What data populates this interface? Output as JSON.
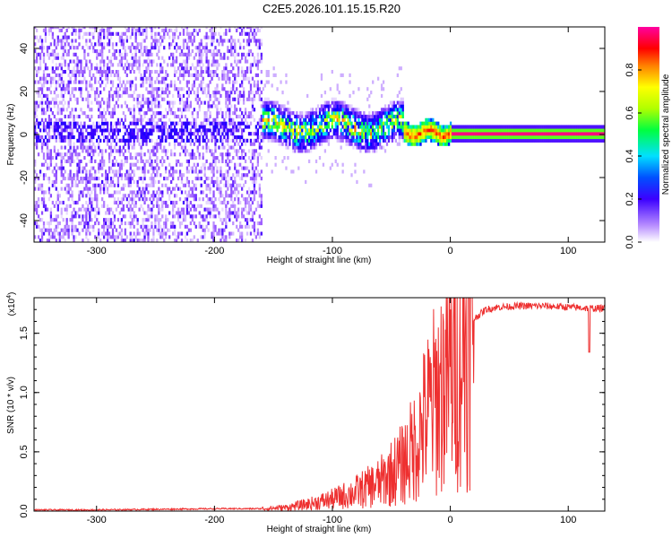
{
  "title": "C2E5.2026.101.15.15.R20",
  "chart_data": [
    {
      "type": "heatmap",
      "title": "C2E5.2026.101.15.15.R20",
      "xlabel": "Height of straight line (km)",
      "ylabel": "Frequency (Hz)",
      "xlim": [
        -353,
        131
      ],
      "ylim": [
        -50,
        50
      ],
      "xticks": [
        -300,
        -200,
        -100,
        0,
        100
      ],
      "yticks": [
        -40,
        -20,
        0,
        20,
        40
      ],
      "colorbar": {
        "label": "Normalized spectral amplitude",
        "range": [
          0.0,
          1.0
        ],
        "ticks": [
          0.0,
          0.2,
          0.4,
          0.6,
          0.8
        ],
        "tick_labels": [
          "0.0",
          "0.2",
          "0.4",
          "0.6",
          "0.8"
        ],
        "colors": [
          "#ffffff",
          "#9d5cff",
          "#3c00ff",
          "#0000ff",
          "#00e0ff",
          "#00ff40",
          "#b0ff00",
          "#ffff00",
          "#ff8000",
          "#ff0000",
          "#ff00a0"
        ]
      },
      "regions": [
        {
          "name": "noise",
          "x_range": [
            -353,
            -160
          ],
          "amplitude": [
            0.02,
            0.12
          ]
        },
        {
          "name": "signal_turbulent",
          "x_range": [
            -160,
            -40
          ],
          "freq_center": 3,
          "freq_width": 10,
          "amplitude": [
            0.3,
            0.6
          ]
        },
        {
          "name": "signal_stable",
          "x_range": [
            0,
            131
          ],
          "freq_center": 0,
          "amplitude": 1.0
        }
      ]
    },
    {
      "type": "line",
      "xlabel": "Height of straight line (km)",
      "ylabel": "SNR (10 * v/v)",
      "yscale_label": "(x10",
      "yscale_exp": "4",
      "yscale_close": ")",
      "xlim": [
        -353,
        131
      ],
      "ylim": [
        0,
        1.8
      ],
      "xticks": [
        -300,
        -200,
        -100,
        0,
        100
      ],
      "yticks": [
        0.0,
        0.5,
        1.0,
        1.5
      ],
      "ytick_labels": [
        "0.0",
        "0.5",
        "1.0",
        "1.5"
      ],
      "color": "#ee3030",
      "series": [
        {
          "name": "SNR",
          "x": [
            -353,
            -300,
            -250,
            -200,
            -160,
            -140,
            -120,
            -100,
            -80,
            -60,
            -40,
            -30,
            -20,
            -10,
            0,
            10,
            20,
            30,
            40,
            60,
            80,
            100,
            120,
            131
          ],
          "y": [
            0.01,
            0.01,
            0.015,
            0.02,
            0.02,
            0.03,
            0.06,
            0.1,
            0.16,
            0.24,
            0.4,
            0.55,
            0.8,
            1.0,
            1.2,
            1.45,
            1.62,
            1.7,
            1.72,
            1.73,
            1.73,
            1.72,
            1.71,
            1.71
          ]
        }
      ]
    }
  ]
}
